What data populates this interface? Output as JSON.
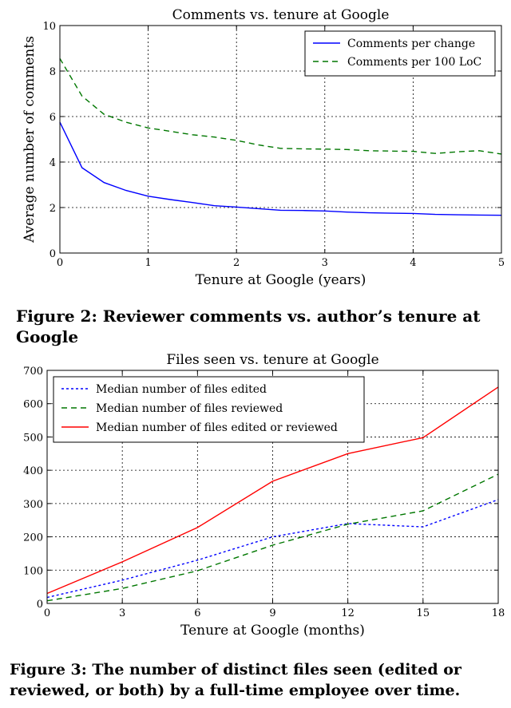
{
  "chart_data": [
    {
      "type": "line",
      "title": "Comments vs. tenure at Google",
      "xlabel": "Tenure at Google (years)",
      "ylabel": "Average number of comments",
      "xlim": [
        0,
        5
      ],
      "ylim": [
        0,
        10
      ],
      "xticks": [
        0,
        1,
        2,
        3,
        4,
        5
      ],
      "yticks": [
        0,
        2,
        4,
        6,
        8,
        10
      ],
      "grid": true,
      "legend_position": "top-right",
      "series": [
        {
          "name": "Comments per change",
          "color": "#0000ff",
          "style": "solid",
          "x": [
            0,
            0.25,
            0.5,
            0.75,
            1,
            1.25,
            1.5,
            1.75,
            2,
            2.25,
            2.5,
            2.75,
            3,
            3.25,
            3.5,
            3.75,
            4,
            4.25,
            4.5,
            4.75,
            5
          ],
          "y": [
            5.75,
            3.75,
            3.1,
            2.75,
            2.5,
            2.35,
            2.22,
            2.08,
            2.02,
            1.95,
            1.88,
            1.87,
            1.85,
            1.8,
            1.77,
            1.75,
            1.74,
            1.7,
            1.68,
            1.67,
            1.66
          ]
        },
        {
          "name": "Comments per 100 LoC",
          "color": "#007700",
          "style": "dashed",
          "x": [
            0,
            0.25,
            0.5,
            0.75,
            1,
            1.25,
            1.5,
            1.75,
            2,
            2.25,
            2.5,
            2.75,
            3,
            3.25,
            3.5,
            3.75,
            4,
            4.25,
            4.5,
            4.75,
            5
          ],
          "y": [
            8.55,
            6.9,
            6.1,
            5.75,
            5.5,
            5.35,
            5.2,
            5.1,
            4.95,
            4.75,
            4.6,
            4.58,
            4.57,
            4.55,
            4.5,
            4.48,
            4.47,
            4.38,
            4.45,
            4.5,
            4.35
          ]
        }
      ]
    },
    {
      "type": "line",
      "title": "Files seen vs. tenure at Google",
      "xlabel": "Tenure at Google (months)",
      "ylabel": "",
      "xlim": [
        0,
        18
      ],
      "ylim": [
        0,
        700
      ],
      "xticks": [
        0,
        3,
        6,
        9,
        12,
        15,
        18
      ],
      "yticks": [
        0,
        100,
        200,
        300,
        400,
        500,
        600,
        700
      ],
      "grid": true,
      "legend_position": "top-left",
      "series": [
        {
          "name": "Median number of files edited",
          "color": "#0000ff",
          "style": "dotted",
          "x": [
            0,
            3,
            6,
            9,
            12,
            15,
            18
          ],
          "y": [
            18,
            70,
            130,
            200,
            240,
            230,
            312
          ]
        },
        {
          "name": "Median number of files reviewed",
          "color": "#007700",
          "style": "dashed",
          "x": [
            0,
            3,
            6,
            9,
            12,
            15,
            18
          ],
          "y": [
            8,
            45,
            98,
            175,
            238,
            278,
            388
          ]
        },
        {
          "name": "Median number of files edited or reviewed",
          "color": "#ff0000",
          "style": "solid",
          "x": [
            0,
            3,
            6,
            9,
            12,
            15,
            18
          ],
          "y": [
            30,
            125,
            228,
            367,
            450,
            498,
            650
          ]
        }
      ]
    }
  ],
  "captions": {
    "figure2": "Figure 2: Reviewer comments vs. author’s tenure at Google",
    "figure3": "Figure 3: The number of distinct files seen (edited or reviewed, or both) by a full-time employee over time."
  }
}
